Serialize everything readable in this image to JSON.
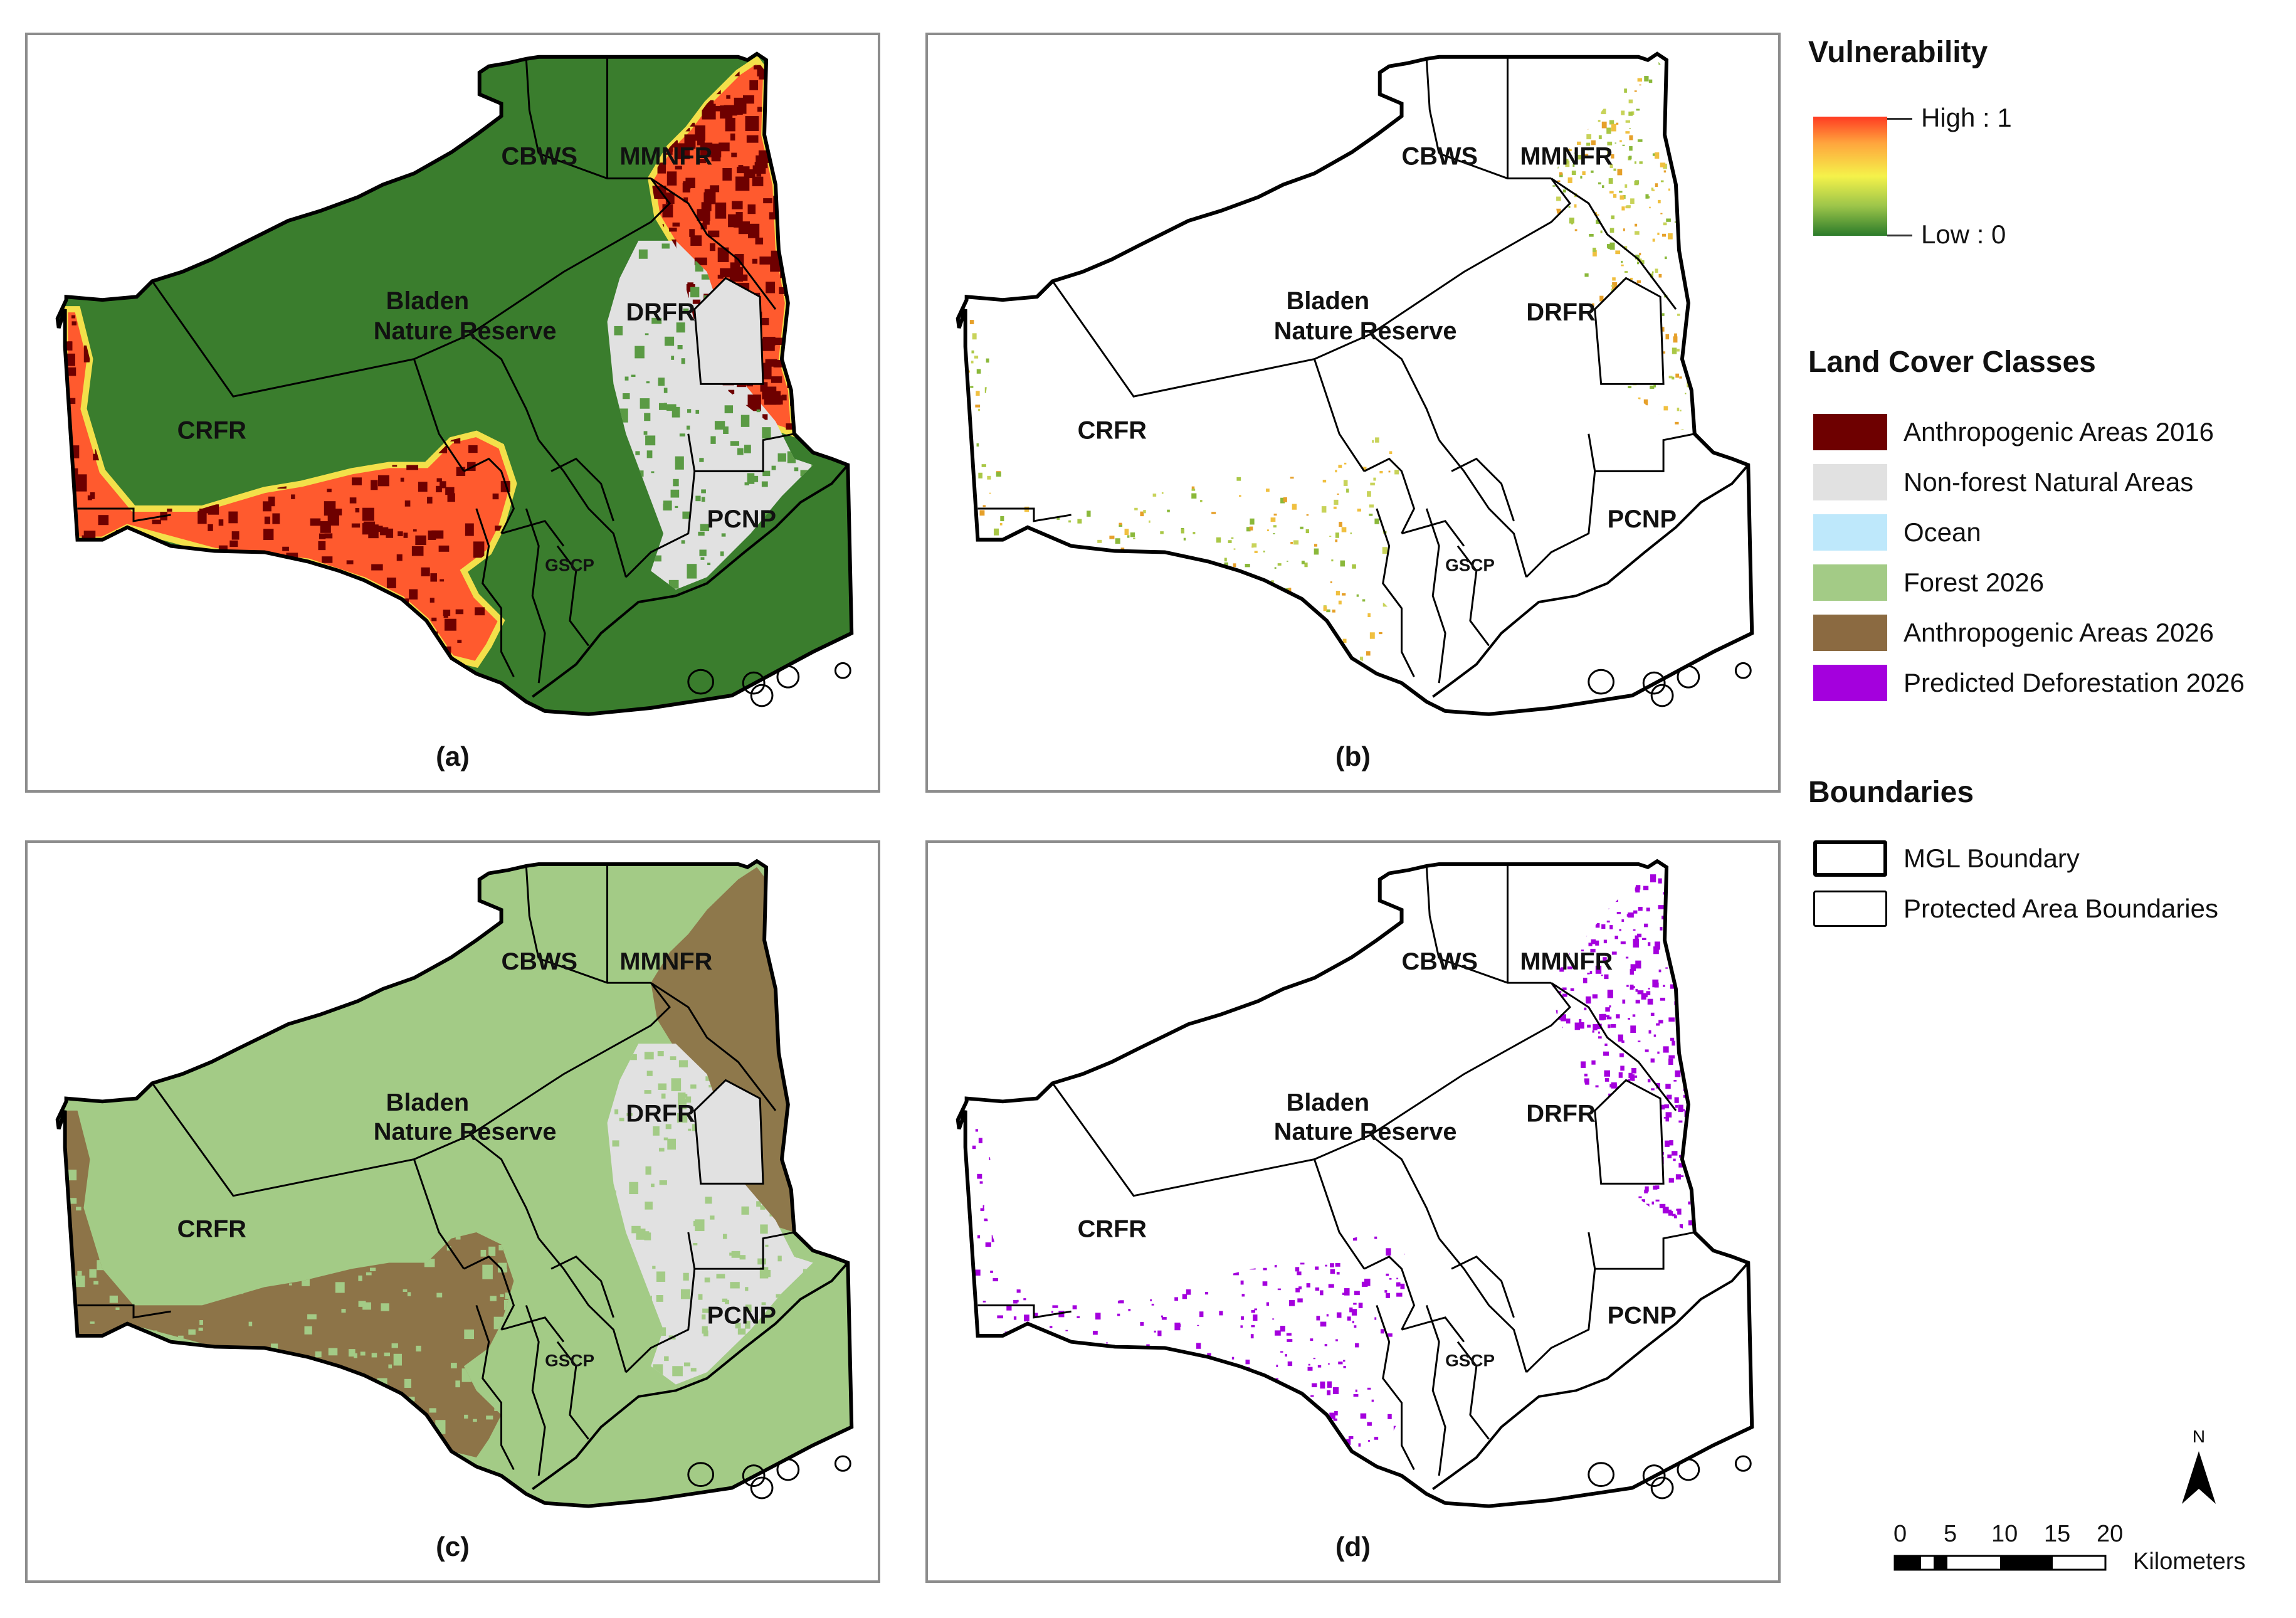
{
  "panels": [
    {
      "caption": "(a)",
      "mode": "vulnerability"
    },
    {
      "caption": "(b)",
      "mode": "vulnerability-pixels"
    },
    {
      "caption": "(c)",
      "mode": "landcover-2026"
    },
    {
      "caption": "(d)",
      "mode": "predicted-deforestation"
    }
  ],
  "map_labels": {
    "cbws": "CBWS",
    "mmnfr": "MMNFR",
    "bladen_line1": "Bladen",
    "bladen_line2": "Nature Reserve",
    "drfr": "DRFR",
    "crfr": "CRFR",
    "pcnp": "PCNP",
    "gscp": "GSCP"
  },
  "legend": {
    "vulnerability": {
      "title": "Vulnerability",
      "high_label": "High : 1",
      "low_label": "Low : 0",
      "gradient_colors": [
        "#ff3b22",
        "#ffa43d",
        "#f5f24a",
        "#9cc54a",
        "#2b7b2a"
      ]
    },
    "land_cover": {
      "title": "Land Cover Classes",
      "items": [
        {
          "label": "Anthropogenic Areas 2016",
          "color": "#6e0000"
        },
        {
          "label": "Non-forest Natural Areas",
          "color": "#e1e1e1"
        },
        {
          "label": "Ocean",
          "color": "#bee8fb"
        },
        {
          "label": "Forest 2026",
          "color": "#a3cb86"
        },
        {
          "label": "Anthropogenic Areas 2026",
          "color": "#8b6a41"
        },
        {
          "label": "Predicted Deforestation 2026",
          "color": "#a400dd"
        }
      ]
    },
    "boundaries": {
      "title": "Boundaries",
      "items": [
        {
          "label": "MGL Boundary",
          "style": "thick"
        },
        {
          "label": "Protected Area Boundaries",
          "style": "thin"
        }
      ]
    }
  },
  "scale": {
    "ticks": [
      "0",
      "5",
      "10",
      "15",
      "20"
    ],
    "unit": "Kilometers"
  },
  "north_arrow": {
    "label": "N"
  },
  "colors": {
    "forest_dark": "#3a7d2d",
    "forest_light": "#a3cb86",
    "anthropogenic_2016": "#6e0000",
    "vulnerable_high": "#ff5a2e",
    "nonforest": "#e1e1e1",
    "ocean": "#bee8fb",
    "anthropogenic_2026": "#8b6a41",
    "deforestation": "#a400dd",
    "panel_border": "#8c8c8c"
  }
}
